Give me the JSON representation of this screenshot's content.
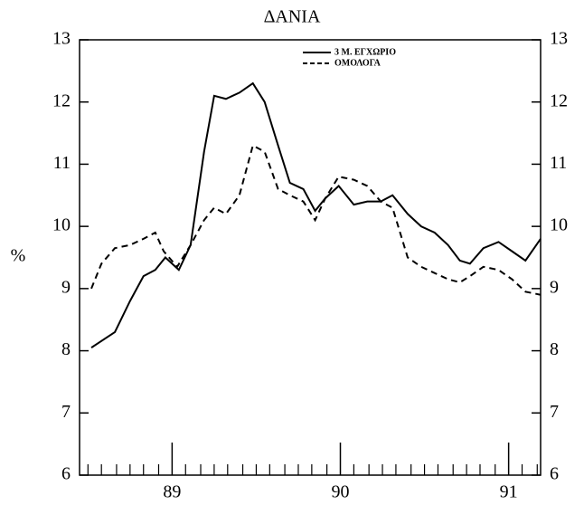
{
  "chart_data": {
    "type": "line",
    "title": "ΔΑΝΙΑ",
    "ylabel": "%",
    "xlim": [
      1988.45,
      1991.19
    ],
    "xticks": [
      {
        "value": 1989,
        "label": "89"
      },
      {
        "value": 1990,
        "label": "90"
      },
      {
        "value": 1991,
        "label": "91"
      }
    ],
    "xminorticks": [
      1988.5,
      1988.58,
      1988.67,
      1988.75,
      1988.83,
      1988.92,
      1989.08,
      1989.17,
      1989.25,
      1989.33,
      1989.42,
      1989.5,
      1989.58,
      1989.67,
      1989.75,
      1989.83,
      1989.92,
      1990.08,
      1990.17,
      1990.25,
      1990.33,
      1990.42,
      1990.5,
      1990.58,
      1990.67,
      1990.75,
      1990.83,
      1990.92,
      1991.08,
      1991.17
    ],
    "ylim": [
      6,
      13
    ],
    "yticks": [
      6,
      7,
      8,
      9,
      10,
      11,
      12,
      13
    ],
    "legend": "upper right",
    "series": [
      {
        "name": "3 Μ. ΕΓΧΩΡΙΟ",
        "color": "#000000",
        "dash": "solid",
        "x": [
          1988.52,
          1988.66,
          1988.75,
          1988.83,
          1988.9,
          1988.96,
          1989.04,
          1989.11,
          1989.19,
          1989.25,
          1989.32,
          1989.4,
          1989.48,
          1989.55,
          1989.63,
          1989.7,
          1989.78,
          1989.85,
          1989.91,
          1989.99,
          1990.08,
          1990.16,
          1990.24,
          1990.31,
          1990.4,
          1990.48,
          1990.56,
          1990.64,
          1990.71,
          1990.77,
          1990.85,
          1990.94,
          1991.02,
          1991.1,
          1991.19
        ],
        "values": [
          8.05,
          8.3,
          8.8,
          9.2,
          9.3,
          9.5,
          9.3,
          9.7,
          11.2,
          12.1,
          12.05,
          12.15,
          12.3,
          12.0,
          11.3,
          10.7,
          10.6,
          10.25,
          10.45,
          10.65,
          10.35,
          10.4,
          10.4,
          10.5,
          10.2,
          10.0,
          9.9,
          9.7,
          9.45,
          9.4,
          9.65,
          9.75,
          9.6,
          9.45,
          9.8
        ]
      },
      {
        "name": "ΟΜΟΛΟΓΑ",
        "color": "#000000",
        "dash": "dashed",
        "x": [
          1988.52,
          1988.58,
          1988.66,
          1988.75,
          1988.83,
          1988.9,
          1988.95,
          1989.03,
          1989.11,
          1989.19,
          1989.25,
          1989.32,
          1989.4,
          1989.48,
          1989.55,
          1989.63,
          1989.7,
          1989.78,
          1989.85,
          1989.91,
          1989.99,
          1990.08,
          1990.16,
          1990.24,
          1990.31,
          1990.4,
          1990.48,
          1990.56,
          1990.64,
          1990.71,
          1990.77,
          1990.85,
          1990.94,
          1991.02,
          1991.1,
          1991.19
        ],
        "values": [
          9.0,
          9.4,
          9.65,
          9.7,
          9.8,
          9.9,
          9.6,
          9.35,
          9.7,
          10.1,
          10.3,
          10.2,
          10.5,
          11.3,
          11.2,
          10.6,
          10.5,
          10.4,
          10.1,
          10.45,
          10.8,
          10.75,
          10.65,
          10.4,
          10.3,
          9.5,
          9.35,
          9.25,
          9.15,
          9.1,
          9.2,
          9.35,
          9.3,
          9.15,
          8.95,
          8.9
        ]
      }
    ]
  }
}
